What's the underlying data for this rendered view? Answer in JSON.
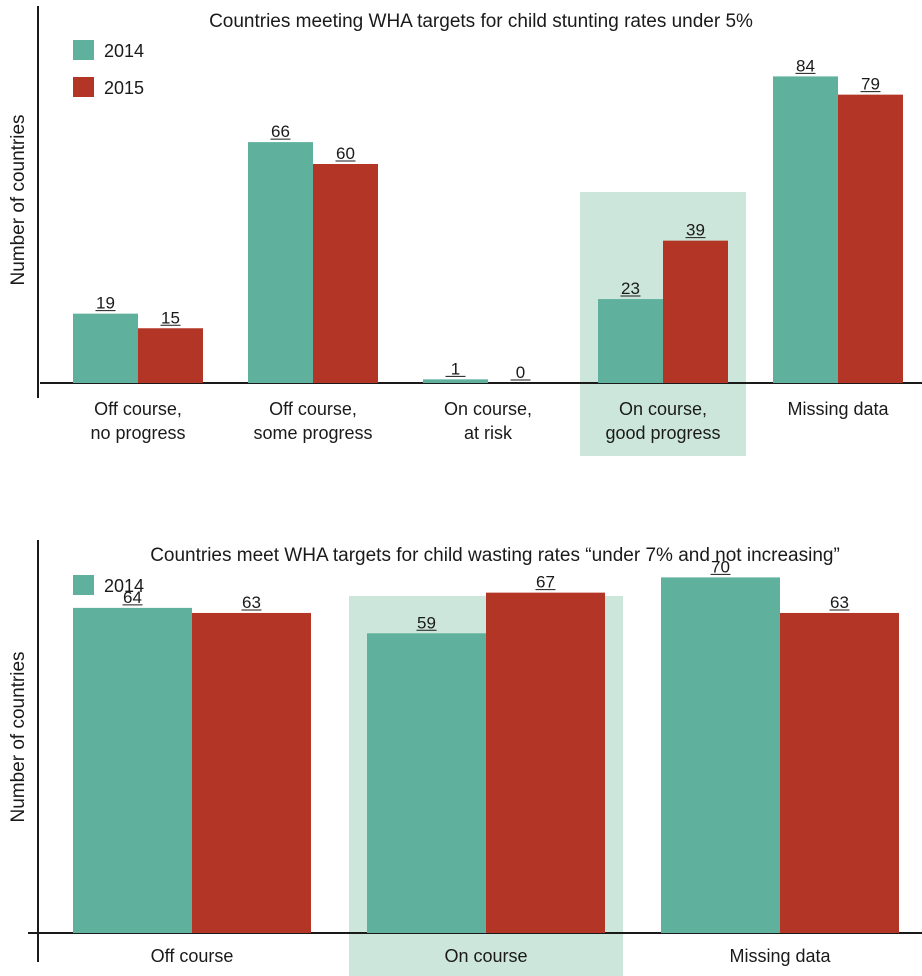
{
  "colors": {
    "y2014": "#5fb19d",
    "y2015": "#b23526",
    "highlight": "#cce6dc"
  },
  "chart_data": [
    {
      "type": "bar",
      "title": "Countries meeting WHA targets for child stunting rates under 5%",
      "ylabel": "Number of countries",
      "xlabel": "",
      "categories": [
        [
          "Off course,",
          "no progress"
        ],
        [
          "Off course,",
          "some progress"
        ],
        [
          "On course,",
          "at risk"
        ],
        [
          "On course,",
          "good progress"
        ],
        [
          "Missing data"
        ]
      ],
      "highlight_category": 3,
      "series": [
        {
          "name": "2014",
          "values": [
            19,
            66,
            1,
            23,
            84
          ]
        },
        {
          "name": "2015",
          "values": [
            15,
            60,
            0,
            39,
            79
          ]
        }
      ],
      "ylim": [
        0,
        100
      ],
      "legend": "top-left",
      "grid": false
    },
    {
      "type": "bar",
      "title": "Countries meet WHA targets for child wasting rates “under 7% and not increasing”",
      "ylabel": "Number of countries",
      "xlabel": "",
      "categories": [
        [
          "Off course"
        ],
        [
          "On course"
        ],
        [
          "Missing data"
        ]
      ],
      "highlight_category": 1,
      "series": [
        {
          "name": "2014",
          "values": [
            64,
            59,
            70
          ]
        },
        {
          "name": "2015",
          "values": [
            63,
            67,
            63
          ]
        }
      ],
      "ylim": [
        0,
        100
      ],
      "legend": "top-left",
      "grid": false
    }
  ]
}
